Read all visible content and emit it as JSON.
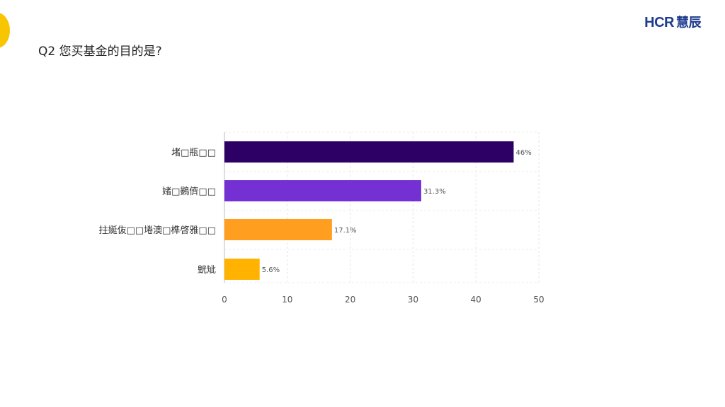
{
  "brand": {
    "logo_text": "HCR",
    "logo_cn": "慧辰"
  },
  "page": {
    "question": "Q2 您买基金的目的是?"
  },
  "chart_data": {
    "type": "bar",
    "orientation": "horizontal",
    "categories": [
      "堵□瓶□□",
      "媎□鷃儕□□",
      "拄娫伖□□埢澳□榫啓雅□□",
      "皝䂑"
    ],
    "values": [
      46,
      31.3,
      17.1,
      5.6
    ],
    "value_labels": [
      "46%",
      "31.3%",
      "17.1%",
      "5.6%"
    ],
    "colors": [
      "#2d0066",
      "#7430d2",
      "#ff9e1f",
      "#ffb300"
    ],
    "xlim": [
      0,
      50
    ],
    "xticks": [
      "0",
      "10",
      "20",
      "30",
      "40",
      "50"
    ],
    "grid": true
  }
}
